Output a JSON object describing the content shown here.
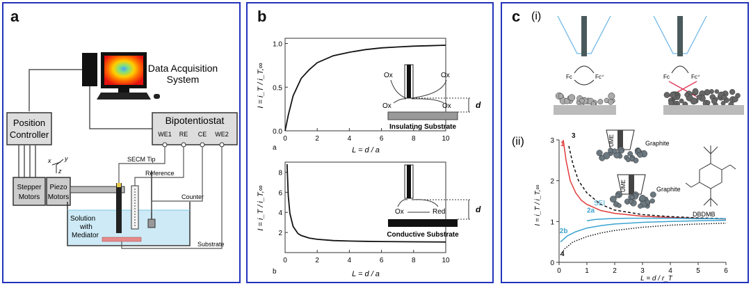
{
  "panel_a": {
    "label": "a",
    "daq_label_line1": "Data Acquisition",
    "daq_label_line2": "System",
    "position_controller_line1": "Position",
    "position_controller_line2": "Controller",
    "bipotentiostat": "Bipotentiostat",
    "ports": [
      "WE1",
      "RE",
      "CE",
      "WE2"
    ],
    "stepper_line1": "Stepper",
    "stepper_line2": "Motors",
    "piezo_line1": "Piezo",
    "piezo_line2": "Motors",
    "axes": [
      "x",
      "y",
      "z"
    ],
    "secm_tip": "SECM Tip",
    "reference": "Reference",
    "counter": "Counter",
    "substrate": "Substrate",
    "solution_line1": "Solution",
    "solution_line2": "with",
    "solution_line3": "Mediator"
  },
  "panel_b": {
    "label": "b",
    "ylabel": "I = i_T / i_T,∞",
    "xlabel": "L = d / a",
    "top": {
      "sub": "a",
      "substrate_label": "Insulating Substrate",
      "species": [
        "Ox",
        "Ox",
        "Ox",
        "Ox"
      ],
      "d_label": "d",
      "yticks": [
        "0.0",
        "0.5",
        "1.0"
      ],
      "xticks": [
        "0",
        "2",
        "4",
        "6",
        "8",
        "10"
      ]
    },
    "bottom": {
      "sub": "b",
      "substrate_label": "Conductive Substrate",
      "species": [
        "Ox",
        "Red"
      ],
      "d_label": "d",
      "yticks": [
        "2",
        "4",
        "6",
        "8"
      ],
      "xticks": [
        "0",
        "2",
        "4",
        "6",
        "8",
        "10"
      ]
    }
  },
  "panel_c": {
    "label": "c",
    "sub_i": "(i)",
    "sub_ii": "(ii)",
    "fc": "Fc",
    "fc_plus": "Fc⁺",
    "ylabel": "I = i_T / i_T,∞",
    "xlabel": "L = d / r_T",
    "yticks": [
      "0",
      "1",
      "2",
      "3"
    ],
    "xticks": [
      "0",
      "1",
      "2",
      "3",
      "4",
      "5",
      "6"
    ],
    "curve_labels": [
      "1",
      "3",
      "2a",
      "2b",
      "4"
    ],
    "graphite1": "Graphite",
    "graphite2": "Graphite",
    "ume1": "UME",
    "ume2": "UME",
    "sei": "SEI",
    "molecule": "DBDMB",
    "colors": {
      "red": "#e03a3a",
      "blue": "#3aa3d0",
      "black": "#111111"
    }
  },
  "chart_data": [
    {
      "type": "line",
      "title": "",
      "xlabel": "L = d / a",
      "ylabel": "I = i_T / i_T,∞",
      "xlim": [
        0,
        10
      ],
      "ylim": [
        0,
        1.0
      ],
      "series": [
        {
          "x": [
            0,
            0.2,
            0.5,
            1,
            1.5,
            2,
            3,
            4,
            5,
            6,
            7,
            8,
            9,
            10
          ],
          "y": [
            0,
            0.18,
            0.4,
            0.6,
            0.7,
            0.78,
            0.86,
            0.9,
            0.93,
            0.95,
            0.96,
            0.97,
            0.975,
            0.98
          ]
        }
      ]
    },
    {
      "type": "line",
      "title": "",
      "xlabel": "L = d / a",
      "ylabel": "I = i_T / i_T,∞",
      "xlim": [
        0,
        10
      ],
      "ylim": [
        0,
        9
      ],
      "series": [
        {
          "x": [
            0.12,
            0.2,
            0.3,
            0.5,
            0.8,
            1,
            1.5,
            2,
            3,
            4,
            5,
            6,
            8,
            10
          ],
          "y": [
            8.8,
            5.6,
            3.9,
            2.6,
            1.9,
            1.7,
            1.45,
            1.32,
            1.2,
            1.15,
            1.12,
            1.1,
            1.07,
            1.05
          ]
        }
      ]
    },
    {
      "type": "line",
      "title": "",
      "xlabel": "L = d / r_T",
      "ylabel": "I = i_T / i_T,∞",
      "xlim": [
        0,
        6
      ],
      "ylim": [
        0,
        3
      ],
      "series": [
        {
          "name": "1",
          "x": [
            0.15,
            0.25,
            0.4,
            0.6,
            0.8,
            1,
            1.5,
            2,
            3,
            4,
            5,
            6
          ],
          "y": [
            3.0,
            2.5,
            2.0,
            1.7,
            1.52,
            1.42,
            1.27,
            1.2,
            1.13,
            1.1,
            1.08,
            1.06
          ]
        },
        {
          "name": "3",
          "x": [
            0.35,
            0.5,
            0.7,
            1,
            1.5,
            2,
            3,
            4,
            5,
            6
          ],
          "y": [
            2.85,
            2.4,
            2.0,
            1.7,
            1.42,
            1.28,
            1.17,
            1.12,
            1.09,
            1.07
          ]
        },
        {
          "name": "2a",
          "x": [
            1.0,
            1.3,
            1.8,
            2.5,
            3,
            4,
            5,
            6
          ],
          "y": [
            1.02,
            1.05,
            1.07,
            1.08,
            1.08,
            1.08,
            1.07,
            1.07
          ]
        },
        {
          "name": "2b",
          "x": [
            0.05,
            0.3,
            0.6,
            1,
            1.5,
            2,
            3,
            4,
            5,
            6
          ],
          "y": [
            0.5,
            0.65,
            0.75,
            0.84,
            0.9,
            0.94,
            0.98,
            1.0,
            1.02,
            1.03
          ]
        },
        {
          "name": "4",
          "x": [
            0.05,
            0.2,
            0.5,
            1,
            1.5,
            2,
            3,
            4,
            5,
            6
          ],
          "y": [
            0.18,
            0.33,
            0.5,
            0.63,
            0.72,
            0.78,
            0.86,
            0.91,
            0.94,
            0.96
          ]
        }
      ]
    }
  ]
}
